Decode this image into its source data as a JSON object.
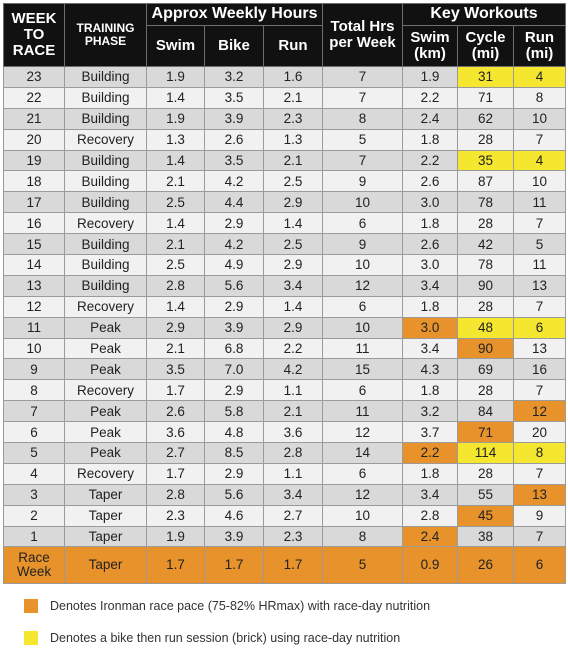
{
  "headers": {
    "week_to_race": "WEEK TO RACE",
    "training_phase": "TRAINING PHASE",
    "approx_weekly_hours": "Approx Weekly Hours",
    "swim": "Swim",
    "bike": "Bike",
    "run": "Run",
    "total_hrs": "Total Hrs per Week",
    "key_workouts": "Key Workouts",
    "key_swim": "Swim (km)",
    "key_cycle": "Cycle (mi)",
    "key_run": "Run (mi)"
  },
  "rows": [
    {
      "week": "23",
      "phase": "Building",
      "swim": "1.9",
      "bike": "3.2",
      "run": "1.6",
      "total": "7",
      "kswim": "1.9",
      "kcycle": "31",
      "krun": "4",
      "hl": {
        "kcycle": "yellow",
        "krun": "yellow"
      }
    },
    {
      "week": "22",
      "phase": "Building",
      "swim": "1.4",
      "bike": "3.5",
      "run": "2.1",
      "total": "7",
      "kswim": "2.2",
      "kcycle": "71",
      "krun": "8",
      "hl": {}
    },
    {
      "week": "21",
      "phase": "Building",
      "swim": "1.9",
      "bike": "3.9",
      "run": "2.3",
      "total": "8",
      "kswim": "2.4",
      "kcycle": "62",
      "krun": "10",
      "hl": {}
    },
    {
      "week": "20",
      "phase": "Recovery",
      "swim": "1.3",
      "bike": "2.6",
      "run": "1.3",
      "total": "5",
      "kswim": "1.8",
      "kcycle": "28",
      "krun": "7",
      "hl": {}
    },
    {
      "week": "19",
      "phase": "Building",
      "swim": "1.4",
      "bike": "3.5",
      "run": "2.1",
      "total": "7",
      "kswim": "2.2",
      "kcycle": "35",
      "krun": "4",
      "hl": {
        "kcycle": "yellow",
        "krun": "yellow"
      }
    },
    {
      "week": "18",
      "phase": "Building",
      "swim": "2.1",
      "bike": "4.2",
      "run": "2.5",
      "total": "9",
      "kswim": "2.6",
      "kcycle": "87",
      "krun": "10",
      "hl": {}
    },
    {
      "week": "17",
      "phase": "Building",
      "swim": "2.5",
      "bike": "4.4",
      "run": "2.9",
      "total": "10",
      "kswim": "3.0",
      "kcycle": "78",
      "krun": "11",
      "hl": {}
    },
    {
      "week": "16",
      "phase": "Recovery",
      "swim": "1.4",
      "bike": "2.9",
      "run": "1.4",
      "total": "6",
      "kswim": "1.8",
      "kcycle": "28",
      "krun": "7",
      "hl": {}
    },
    {
      "week": "15",
      "phase": "Building",
      "swim": "2.1",
      "bike": "4.2",
      "run": "2.5",
      "total": "9",
      "kswim": "2.6",
      "kcycle": "42",
      "krun": "5",
      "hl": {}
    },
    {
      "week": "14",
      "phase": "Building",
      "swim": "2.5",
      "bike": "4.9",
      "run": "2.9",
      "total": "10",
      "kswim": "3.0",
      "kcycle": "78",
      "krun": "11",
      "hl": {}
    },
    {
      "week": "13",
      "phase": "Building",
      "swim": "2.8",
      "bike": "5.6",
      "run": "3.4",
      "total": "12",
      "kswim": "3.4",
      "kcycle": "90",
      "krun": "13",
      "hl": {}
    },
    {
      "week": "12",
      "phase": "Recovery",
      "swim": "1.4",
      "bike": "2.9",
      "run": "1.4",
      "total": "6",
      "kswim": "1.8",
      "kcycle": "28",
      "krun": "7",
      "hl": {}
    },
    {
      "week": "11",
      "phase": "Peak",
      "swim": "2.9",
      "bike": "3.9",
      "run": "2.9",
      "total": "10",
      "kswim": "3.0",
      "kcycle": "48",
      "krun": "6",
      "hl": {
        "kswim": "orange",
        "kcycle": "yellow",
        "krun": "yellow"
      }
    },
    {
      "week": "10",
      "phase": "Peak",
      "swim": "2.1",
      "bike": "6.8",
      "run": "2.2",
      "total": "11",
      "kswim": "3.4",
      "kcycle": "90",
      "krun": "13",
      "hl": {
        "kcycle": "orange"
      }
    },
    {
      "week": "9",
      "phase": "Peak",
      "swim": "3.5",
      "bike": "7.0",
      "run": "4.2",
      "total": "15",
      "kswim": "4.3",
      "kcycle": "69",
      "krun": "16",
      "hl": {}
    },
    {
      "week": "8",
      "phase": "Recovery",
      "swim": "1.7",
      "bike": "2.9",
      "run": "1.1",
      "total": "6",
      "kswim": "1.8",
      "kcycle": "28",
      "krun": "7",
      "hl": {}
    },
    {
      "week": "7",
      "phase": "Peak",
      "swim": "2.6",
      "bike": "5.8",
      "run": "2.1",
      "total": "11",
      "kswim": "3.2",
      "kcycle": "84",
      "krun": "12",
      "hl": {
        "krun": "orange"
      }
    },
    {
      "week": "6",
      "phase": "Peak",
      "swim": "3.6",
      "bike": "4.8",
      "run": "3.6",
      "total": "12",
      "kswim": "3.7",
      "kcycle": "71",
      "krun": "20",
      "hl": {
        "kcycle": "orange"
      }
    },
    {
      "week": "5",
      "phase": "Peak",
      "swim": "2.7",
      "bike": "8.5",
      "run": "2.8",
      "total": "14",
      "kswim": "2.2",
      "kcycle": "114",
      "krun": "8",
      "hl": {
        "kswim": "orange",
        "kcycle": "yellow",
        "krun": "yellow"
      }
    },
    {
      "week": "4",
      "phase": "Recovery",
      "swim": "1.7",
      "bike": "2.9",
      "run": "1.1",
      "total": "6",
      "kswim": "1.8",
      "kcycle": "28",
      "krun": "7",
      "hl": {}
    },
    {
      "week": "3",
      "phase": "Taper",
      "swim": "2.8",
      "bike": "5.6",
      "run": "3.4",
      "total": "12",
      "kswim": "3.4",
      "kcycle": "55",
      "krun": "13",
      "hl": {
        "krun": "orange"
      }
    },
    {
      "week": "2",
      "phase": "Taper",
      "swim": "2.3",
      "bike": "4.6",
      "run": "2.7",
      "total": "10",
      "kswim": "2.8",
      "kcycle": "45",
      "krun": "9",
      "hl": {
        "kcycle": "orange"
      }
    },
    {
      "week": "1",
      "phase": "Taper",
      "swim": "1.9",
      "bike": "3.9",
      "run": "2.3",
      "total": "8",
      "kswim": "2.4",
      "kcycle": "38",
      "krun": "7",
      "hl": {
        "kswim": "orange"
      }
    }
  ],
  "race_week": {
    "week": "Race Week",
    "phase": "Taper",
    "swim": "1.7",
    "bike": "1.7",
    "run": "1.7",
    "total": "5",
    "kswim": "0.9",
    "kcycle": "26",
    "krun": "6"
  },
  "legend": {
    "orange": "Denotes Ironman race pace (75-82% HRmax) with race-day nutrition",
    "yellow": "Denotes a bike then run session (brick) using race-day nutrition"
  },
  "colors": {
    "orange": "#e8922c",
    "yellow": "#f5e630",
    "header_bg": "#111111"
  }
}
